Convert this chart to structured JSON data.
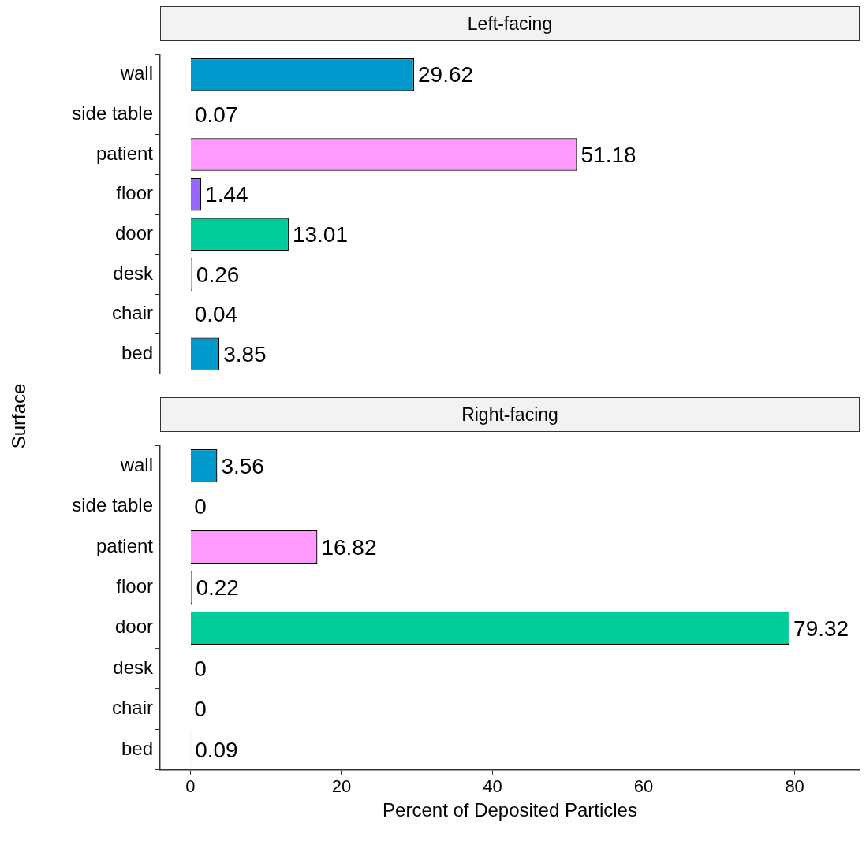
{
  "chart_data": [
    {
      "type": "bar",
      "orientation": "horizontal",
      "title": "Left-facing",
      "ylabel": "Surface",
      "categories": [
        "wall",
        "side table",
        "patient",
        "floor",
        "door",
        "desk",
        "chair",
        "bed"
      ],
      "values": [
        29.62,
        0.07,
        51.18,
        1.44,
        13.01,
        0.26,
        0.04,
        3.85
      ],
      "colors": [
        "#0099cc",
        "#ff6666",
        "#ff99ff",
        "#9966ff",
        "#00cc99",
        "#66cc99",
        "#ff6666",
        "#0099cc"
      ],
      "xlim": [
        -4,
        88.6
      ],
      "xticks": [
        0,
        20,
        40,
        60,
        80
      ],
      "tick_labels": "y",
      "data_labels": true,
      "grid": false,
      "legend": false
    },
    {
      "type": "bar",
      "orientation": "horizontal",
      "title": "Right-facing",
      "xlabel": "Percent of Deposited Particles",
      "categories": [
        "wall",
        "side table",
        "patient",
        "floor",
        "door",
        "desk",
        "chair",
        "bed"
      ],
      "values": [
        3.56,
        0,
        16.82,
        0.22,
        79.32,
        0,
        0,
        0.09
      ],
      "colors": [
        "#0099cc",
        "#ff6666",
        "#ff99ff",
        "#9966ff",
        "#00cc99",
        "#66cc99",
        "#ff6666",
        "#0099cc"
      ],
      "xlim": [
        -4,
        88.6
      ],
      "xticks": [
        0,
        20,
        40,
        60,
        80
      ],
      "data_labels": true,
      "grid": false,
      "legend": false
    }
  ]
}
